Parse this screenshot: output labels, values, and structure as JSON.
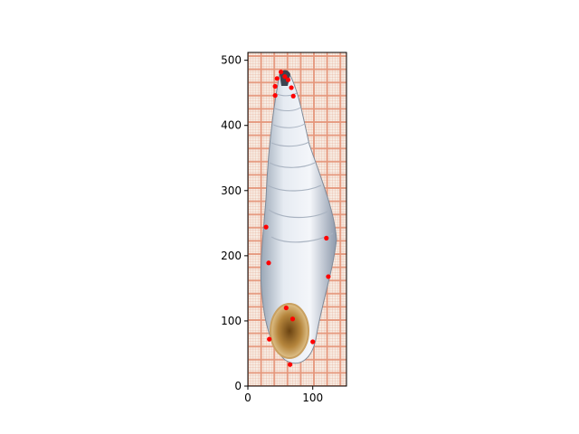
{
  "chart_data": {
    "type": "scatter",
    "title": "",
    "xlabel": "",
    "ylabel": "",
    "xlim": [
      0,
      152
    ],
    "ylim": [
      0,
      512
    ],
    "x_ticks": [
      0,
      100
    ],
    "y_ticks": [
      0,
      100,
      200,
      300,
      400,
      500
    ],
    "background": "photograph of a snail shell on graph paper",
    "marker_color": "#ff0000",
    "grid_color": "#e4967a",
    "series": [
      {
        "points": [
          {
            "x": 51,
            "y": 482
          },
          {
            "x": 45,
            "y": 472
          },
          {
            "x": 57,
            "y": 475
          },
          {
            "x": 62,
            "y": 470
          },
          {
            "x": 42,
            "y": 460
          },
          {
            "x": 67,
            "y": 458
          },
          {
            "x": 42,
            "y": 446
          },
          {
            "x": 70,
            "y": 445
          },
          {
            "x": 28,
            "y": 244
          },
          {
            "x": 121,
            "y": 227
          },
          {
            "x": 32,
            "y": 189
          },
          {
            "x": 124,
            "y": 168
          },
          {
            "x": 59,
            "y": 120
          },
          {
            "x": 69,
            "y": 103
          },
          {
            "x": 33,
            "y": 72
          },
          {
            "x": 100,
            "y": 68
          },
          {
            "x": 65,
            "y": 33
          }
        ]
      }
    ]
  }
}
